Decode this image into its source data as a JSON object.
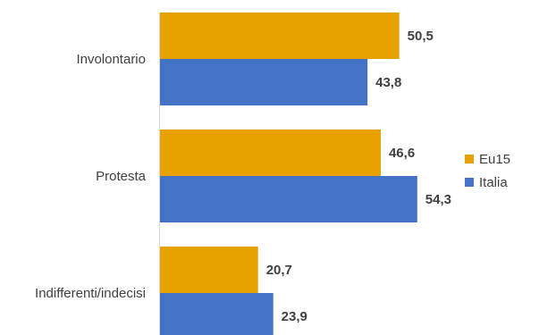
{
  "chart_data": {
    "type": "bar",
    "orientation": "horizontal",
    "categories": [
      "Involontario",
      "Protesta",
      "Indifferenti/indecisi"
    ],
    "series": [
      {
        "name": "Eu15",
        "color": "#E8A200",
        "values": [
          50.5,
          46.6,
          20.7
        ],
        "labels": [
          "50,5",
          "46,6",
          "20,7"
        ]
      },
      {
        "name": "Italia",
        "color": "#4472C4",
        "values": [
          43.8,
          54.3,
          23.9
        ],
        "labels": [
          "43,8",
          "54,3",
          "23,9"
        ]
      }
    ],
    "xlim": [
      0,
      60
    ],
    "grid": false,
    "legend": "right",
    "title": "",
    "xlabel": "",
    "ylabel": ""
  }
}
